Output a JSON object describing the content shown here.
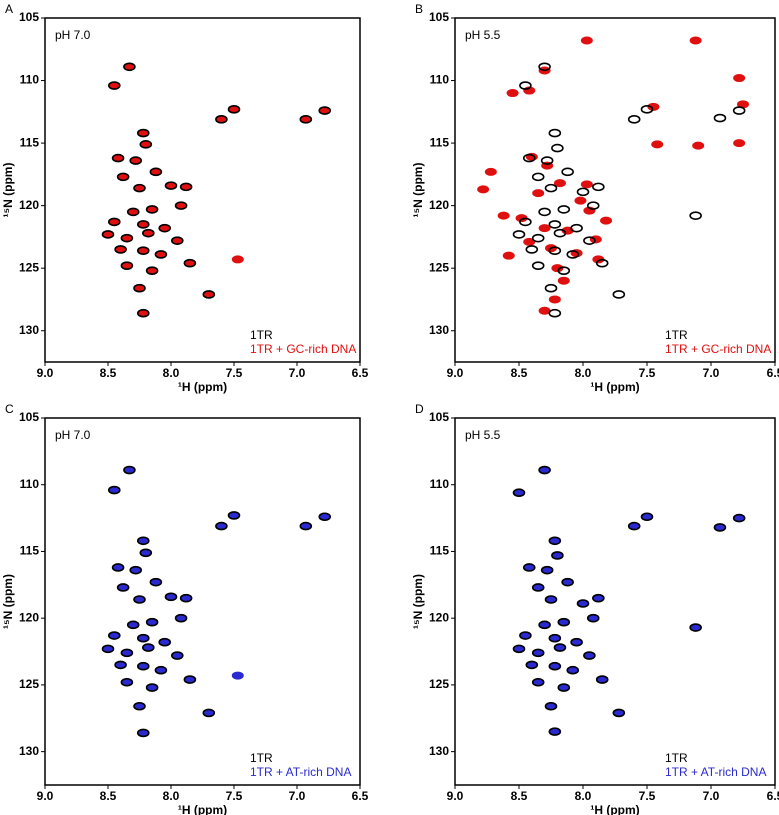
{
  "chart_data": [
    {
      "type": "scatter",
      "panel_label": "A",
      "annotation": "pH 7.0",
      "x_label": "¹H  (ppm)",
      "y_label": "¹⁵N (ppm)",
      "xlim": [
        9,
        6.5
      ],
      "ylim": [
        105,
        132.5
      ],
      "xticks": [
        {
          "value": 9,
          "label": "9.0"
        },
        8.5,
        {
          "value": 8,
          "label": "8.0"
        },
        7.5,
        {
          "value": 7,
          "label": "7.0"
        },
        6.5
      ],
      "yticks": [
        105,
        110,
        115,
        120,
        125,
        130
      ],
      "legend": "lower right",
      "series": [
        {
          "name": "1TR",
          "color": "#000000",
          "x": [
            8.45,
            8.33,
            7.5,
            7.6,
            6.93,
            6.78,
            8.22,
            8.2,
            8.42,
            8.28,
            8.38,
            8.12,
            8.25,
            8.0,
            7.88,
            8.3,
            8.15,
            7.92,
            8.45,
            8.22,
            8.05,
            8.5,
            8.35,
            8.18,
            7.95,
            8.4,
            8.22,
            8.08,
            8.35,
            8.15,
            7.85,
            8.25,
            7.7,
            8.22
          ],
          "values": [
            110.4,
            108.9,
            112.3,
            113.1,
            113.1,
            112.4,
            114.2,
            115.1,
            116.2,
            116.4,
            117.7,
            117.3,
            118.6,
            118.4,
            118.5,
            120.5,
            120.3,
            120.0,
            121.3,
            121.5,
            121.8,
            122.3,
            122.6,
            122.2,
            122.8,
            123.5,
            123.6,
            123.9,
            124.8,
            125.2,
            124.6,
            126.6,
            127.1,
            128.6
          ]
        },
        {
          "name": "1TR + GC-rich DNA",
          "color": "#e01010",
          "x": [
            8.45,
            8.33,
            7.5,
            7.6,
            6.93,
            6.78,
            8.22,
            8.2,
            8.42,
            8.28,
            8.38,
            8.12,
            8.25,
            8.0,
            7.88,
            8.3,
            8.15,
            7.92,
            8.45,
            8.22,
            8.05,
            8.5,
            8.35,
            8.18,
            7.95,
            8.4,
            8.22,
            8.08,
            8.35,
            8.15,
            7.85,
            8.25,
            7.7,
            8.22,
            7.47
          ],
          "values": [
            110.4,
            108.9,
            112.3,
            113.1,
            113.1,
            112.4,
            114.2,
            115.1,
            116.2,
            116.4,
            117.7,
            117.3,
            118.6,
            118.4,
            118.5,
            120.5,
            120.3,
            120.0,
            121.3,
            121.5,
            121.8,
            122.3,
            122.6,
            122.2,
            122.8,
            123.5,
            123.6,
            123.9,
            124.8,
            125.2,
            124.6,
            126.6,
            127.1,
            128.6,
            124.3
          ]
        }
      ]
    },
    {
      "type": "scatter",
      "panel_label": "B",
      "annotation": "pH 5.5",
      "x_label": "¹H  (ppm)",
      "y_label": "¹⁵N (ppm)",
      "xlim": [
        9,
        6.5
      ],
      "ylim": [
        105,
        132.5
      ],
      "xticks": [
        {
          "value": 9,
          "label": "9.0"
        },
        8.5,
        {
          "value": 8,
          "label": "8.0"
        },
        7.5,
        {
          "value": 7,
          "label": "7.0"
        },
        6.5
      ],
      "yticks": [
        105,
        110,
        115,
        120,
        125,
        130
      ],
      "legend": "lower right",
      "series": [
        {
          "name": "1TR",
          "color": "#000000",
          "x": [
            8.45,
            8.3,
            7.5,
            7.6,
            6.93,
            6.78,
            8.22,
            8.2,
            8.42,
            8.28,
            8.35,
            8.12,
            8.25,
            8.0,
            7.88,
            8.3,
            8.15,
            7.92,
            8.45,
            8.22,
            8.05,
            8.5,
            8.35,
            8.18,
            7.95,
            8.4,
            8.22,
            8.08,
            8.35,
            8.15,
            7.85,
            8.25,
            7.72,
            8.22,
            7.12
          ],
          "values": [
            110.4,
            108.9,
            112.3,
            113.1,
            113.0,
            112.4,
            114.2,
            115.4,
            116.2,
            116.4,
            117.7,
            117.3,
            118.6,
            118.9,
            118.5,
            120.5,
            120.3,
            120.0,
            121.3,
            121.5,
            121.8,
            122.3,
            122.6,
            122.2,
            122.8,
            123.5,
            123.6,
            123.9,
            124.8,
            125.2,
            124.6,
            126.6,
            127.1,
            128.6,
            120.8
          ]
        },
        {
          "name": "1TR + GC-rich DNA",
          "color": "#e01010",
          "x": [
            8.55,
            8.42,
            8.3,
            7.97,
            7.12,
            7.45,
            6.78,
            6.75,
            6.78,
            7.42,
            7.1,
            8.4,
            8.28,
            8.72,
            8.78,
            8.62,
            8.58,
            8.35,
            8.18,
            8.02,
            7.95,
            7.82,
            8.48,
            8.3,
            8.12,
            7.9,
            8.42,
            8.25,
            8.05,
            7.88,
            8.2,
            8.15,
            8.22,
            7.97,
            8.3
          ],
          "values": [
            111.0,
            110.8,
            109.2,
            106.8,
            106.8,
            112.1,
            109.8,
            111.9,
            115.0,
            115.1,
            115.2,
            116.1,
            116.8,
            117.3,
            118.7,
            120.8,
            124.0,
            119.0,
            118.2,
            119.6,
            120.4,
            121.2,
            121.0,
            121.8,
            122.0,
            122.7,
            122.9,
            123.4,
            123.8,
            124.3,
            125.0,
            126.0,
            127.5,
            118.3,
            128.4
          ]
        }
      ]
    },
    {
      "type": "scatter",
      "panel_label": "C",
      "annotation": "pH 7.0",
      "x_label": "¹H  (ppm)",
      "y_label": "¹⁵N (ppm)",
      "xlim": [
        9,
        6.5
      ],
      "ylim": [
        105,
        132.5
      ],
      "xticks": [
        {
          "value": 9,
          "label": "9.0"
        },
        8.5,
        {
          "value": 8,
          "label": "8.0"
        },
        7.5,
        {
          "value": 7,
          "label": "7.0"
        },
        6.5
      ],
      "yticks": [
        105,
        110,
        115,
        120,
        125,
        130
      ],
      "legend": "lower right",
      "series": [
        {
          "name": "1TR",
          "color": "#000000",
          "x": [
            8.45,
            8.33,
            7.5,
            7.6,
            6.93,
            6.78,
            8.22,
            8.2,
            8.42,
            8.28,
            8.38,
            8.12,
            8.25,
            8.0,
            7.88,
            8.3,
            8.15,
            7.92,
            8.45,
            8.22,
            8.05,
            8.5,
            8.35,
            8.18,
            7.95,
            8.4,
            8.22,
            8.08,
            8.35,
            8.15,
            7.85,
            8.25,
            7.7,
            8.22
          ],
          "values": [
            110.4,
            108.9,
            112.3,
            113.1,
            113.1,
            112.4,
            114.2,
            115.1,
            116.2,
            116.4,
            117.7,
            117.3,
            118.6,
            118.4,
            118.5,
            120.5,
            120.3,
            120.0,
            121.3,
            121.5,
            121.8,
            122.3,
            122.6,
            122.2,
            122.8,
            123.5,
            123.6,
            123.9,
            124.8,
            125.2,
            124.6,
            126.6,
            127.1,
            128.6
          ]
        },
        {
          "name": "1TR + AT-rich DNA",
          "color": "#2a2ad0",
          "x": [
            8.45,
            8.33,
            7.5,
            7.6,
            6.93,
            6.78,
            8.22,
            8.2,
            8.42,
            8.28,
            8.38,
            8.12,
            8.25,
            8.0,
            7.88,
            8.3,
            8.15,
            7.92,
            8.45,
            8.22,
            8.05,
            8.5,
            8.35,
            8.18,
            7.95,
            8.4,
            8.22,
            8.08,
            8.35,
            8.15,
            7.85,
            8.25,
            7.7,
            8.22,
            7.47
          ],
          "values": [
            110.4,
            108.9,
            112.3,
            113.1,
            113.1,
            112.4,
            114.2,
            115.1,
            116.2,
            116.4,
            117.7,
            117.3,
            118.6,
            118.4,
            118.5,
            120.5,
            120.3,
            120.0,
            121.3,
            121.5,
            121.8,
            122.3,
            122.6,
            122.2,
            122.8,
            123.5,
            123.6,
            123.9,
            124.8,
            125.2,
            124.6,
            126.6,
            127.1,
            128.6,
            124.3
          ]
        }
      ]
    },
    {
      "type": "scatter",
      "panel_label": "D",
      "annotation": "pH 5.5",
      "x_label": "¹H  (ppm)",
      "y_label": "¹⁵N (ppm)",
      "xlim": [
        9,
        6.5
      ],
      "ylim": [
        105,
        132.5
      ],
      "xticks": [
        {
          "value": 9,
          "label": "9.0"
        },
        8.5,
        {
          "value": 8,
          "label": "8.0"
        },
        7.5,
        {
          "value": 7,
          "label": "7.0"
        },
        6.5
      ],
      "yticks": [
        105,
        110,
        115,
        120,
        125,
        130
      ],
      "legend": "lower right",
      "series": [
        {
          "name": "1TR",
          "color": "#000000",
          "x": [
            8.5,
            8.3,
            7.5,
            7.6,
            6.93,
            6.78,
            8.22,
            8.2,
            8.42,
            8.28,
            8.35,
            8.12,
            8.25,
            8.0,
            7.88,
            8.3,
            8.15,
            7.92,
            8.45,
            8.22,
            8.05,
            8.5,
            8.35,
            8.18,
            7.95,
            8.4,
            8.22,
            8.08,
            8.35,
            8.15,
            7.85,
            8.25,
            7.72,
            8.22,
            7.12
          ],
          "values": [
            110.6,
            108.9,
            112.4,
            113.1,
            113.2,
            112.5,
            114.2,
            115.3,
            116.2,
            116.4,
            117.7,
            117.3,
            118.6,
            118.9,
            118.5,
            120.5,
            120.3,
            120.0,
            121.3,
            121.5,
            121.8,
            122.3,
            122.6,
            122.2,
            122.8,
            123.5,
            123.6,
            123.9,
            124.8,
            125.2,
            124.6,
            126.6,
            127.1,
            128.5,
            120.7
          ]
        },
        {
          "name": "1TR + AT-rich DNA",
          "color": "#2a2ad0",
          "x": [
            8.5,
            8.3,
            7.5,
            7.6,
            6.93,
            6.78,
            8.22,
            8.2,
            8.42,
            8.28,
            8.35,
            8.12,
            8.25,
            8.0,
            7.88,
            8.3,
            8.15,
            7.92,
            8.45,
            8.22,
            8.05,
            8.5,
            8.35,
            8.18,
            7.95,
            8.4,
            8.22,
            8.08,
            8.35,
            8.15,
            7.85,
            8.25,
            7.72,
            8.22,
            7.12
          ],
          "values": [
            110.6,
            108.9,
            112.4,
            113.1,
            113.2,
            112.5,
            114.2,
            115.3,
            116.2,
            116.4,
            117.7,
            117.3,
            118.6,
            118.9,
            118.5,
            120.5,
            120.3,
            120.0,
            121.3,
            121.5,
            121.8,
            122.3,
            122.6,
            122.2,
            122.8,
            123.5,
            123.6,
            123.9,
            124.8,
            125.2,
            124.6,
            126.6,
            127.1,
            128.5,
            120.7
          ]
        }
      ]
    }
  ]
}
